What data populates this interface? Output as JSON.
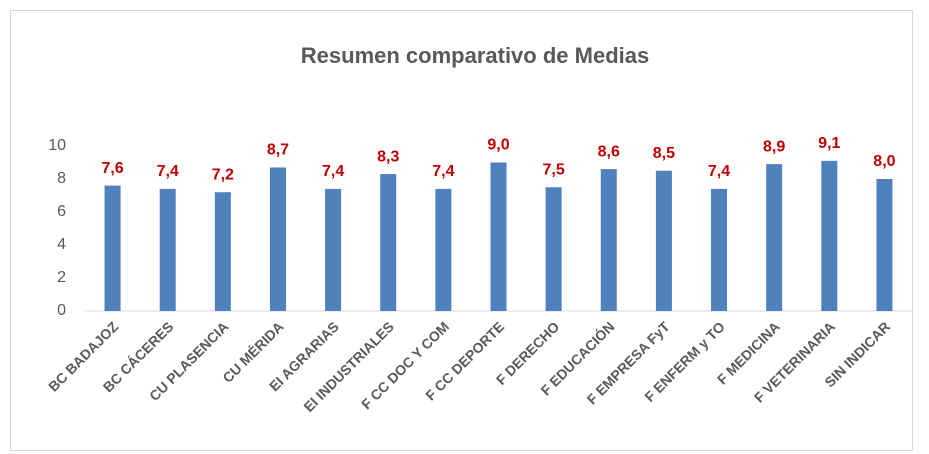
{
  "chart_data": {
    "type": "bar",
    "title": "Resumen comparativo de Medias",
    "categories": [
      "BC BADAJOZ",
      "BC CÁCERES",
      "CU PLASENCIA",
      "CU MÉRIDA",
      "EI AGRARIAS",
      "EI INDUSTRIALES",
      "F CC DOC Y COM",
      "F CC DEPORTE",
      "F DERECHO",
      "F EDUCACIÓN",
      "F EMPRESA FyT",
      "F ENFERM y TO",
      "F MEDICINA",
      "F VETERINARIA",
      "SIN INDICAR"
    ],
    "values": [
      7.6,
      7.4,
      7.2,
      8.7,
      7.4,
      8.3,
      7.4,
      9.0,
      7.5,
      8.6,
      8.5,
      7.4,
      8.9,
      9.1,
      8.0
    ],
    "value_labels": [
      "7,6",
      "7,4",
      "7,2",
      "8,7",
      "7,4",
      "8,3",
      "7,4",
      "9,0",
      "7,5",
      "8,6",
      "8,5",
      "7,4",
      "8,9",
      "9,1",
      "8,0"
    ],
    "color": "#4f81bd",
    "label_color": "#c00000",
    "ylim": [
      0,
      10
    ],
    "yticks": [
      0,
      2,
      4,
      6,
      8,
      10
    ],
    "grid": false
  }
}
